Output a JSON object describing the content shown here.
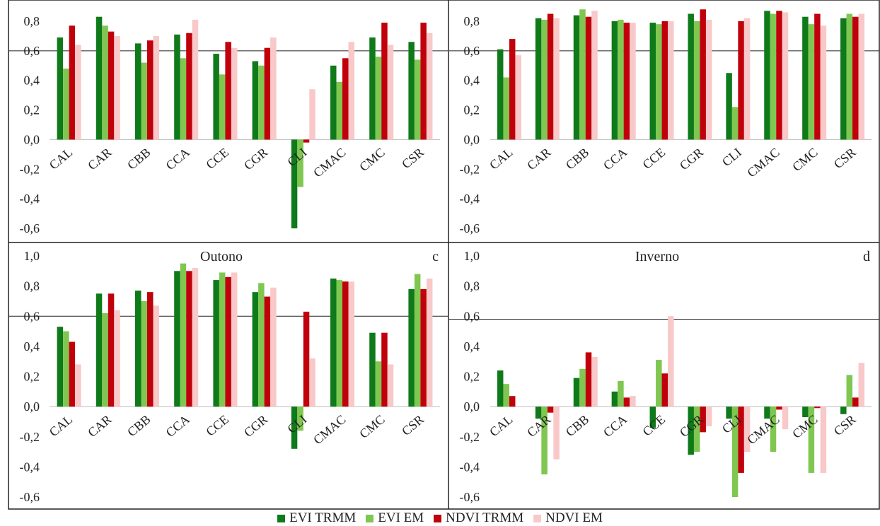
{
  "colors": {
    "evi_trmm": "#0f7a1a",
    "evi_em": "#7fc750",
    "ndvi_trmm": "#c0000b",
    "ndvi_em": "#f9c8c8"
  },
  "chart_data": [
    {
      "type": "bar",
      "title": "",
      "panel_letter": "",
      "categories": [
        "CAL",
        "CAR",
        "CBB",
        "CCA",
        "CCE",
        "CGR",
        "CLI",
        "CMAC",
        "CMC",
        "CSR"
      ],
      "series": [
        {
          "name": "EVI TRMM",
          "values": [
            0.69,
            0.83,
            0.65,
            0.71,
            0.58,
            0.53,
            -0.6,
            0.5,
            0.69,
            0.66
          ]
        },
        {
          "name": "EVI EM",
          "values": [
            0.48,
            0.77,
            0.52,
            0.55,
            0.44,
            0.5,
            -0.32,
            0.39,
            0.56,
            0.54
          ]
        },
        {
          "name": "NDVI TRMM",
          "values": [
            0.77,
            0.73,
            0.67,
            0.72,
            0.66,
            0.62,
            -0.02,
            0.55,
            0.79,
            0.79
          ]
        },
        {
          "name": "NDVI EM",
          "values": [
            0.64,
            0.7,
            0.7,
            0.81,
            0.62,
            0.69,
            0.34,
            0.66,
            0.64,
            0.72
          ]
        }
      ],
      "ylim": [
        -0.6,
        0.8
      ],
      "yticks": [
        "-0,6",
        "-0,4",
        "-0,2",
        "0,0",
        "0,2",
        "0,4",
        "0,6",
        "0,8"
      ],
      "threshold": 0.6
    },
    {
      "type": "bar",
      "title": "",
      "panel_letter": "",
      "categories": [
        "CAL",
        "CAR",
        "CBB",
        "CCA",
        "CCE",
        "CGR",
        "CLI",
        "CMAC",
        "CMC",
        "CSR"
      ],
      "series": [
        {
          "name": "EVI TRMM",
          "values": [
            0.61,
            0.82,
            0.84,
            0.8,
            0.79,
            0.85,
            0.45,
            0.87,
            0.83,
            0.82
          ]
        },
        {
          "name": "EVI EM",
          "values": [
            0.42,
            0.81,
            0.88,
            0.81,
            0.78,
            0.8,
            0.22,
            0.85,
            0.78,
            0.85
          ]
        },
        {
          "name": "NDVI TRMM",
          "values": [
            0.68,
            0.85,
            0.83,
            0.79,
            0.8,
            0.88,
            0.8,
            0.87,
            0.85,
            0.83
          ]
        },
        {
          "name": "NDVI EM",
          "values": [
            0.57,
            0.82,
            0.87,
            0.79,
            0.8,
            0.81,
            0.82,
            0.86,
            0.77,
            0.85
          ]
        }
      ],
      "ylim": [
        -0.6,
        0.8
      ],
      "yticks": [
        "-0,6",
        "-0,4",
        "-0,2",
        "0,0",
        "0,2",
        "0,4",
        "0,6",
        "0,8"
      ],
      "threshold": 0.6
    },
    {
      "type": "bar",
      "title": "Outono",
      "panel_letter": "c",
      "categories": [
        "CAL",
        "CAR",
        "CBB",
        "CCA",
        "CCE",
        "CGR",
        "CLI",
        "CMAC",
        "CMC",
        "CSR"
      ],
      "series": [
        {
          "name": "EVI TRMM",
          "values": [
            0.53,
            0.75,
            0.77,
            0.9,
            0.84,
            0.76,
            -0.28,
            0.85,
            0.49,
            0.78
          ]
        },
        {
          "name": "EVI EM",
          "values": [
            0.5,
            0.62,
            0.7,
            0.95,
            0.89,
            0.82,
            -0.16,
            0.84,
            0.3,
            0.88
          ]
        },
        {
          "name": "NDVI TRMM",
          "values": [
            0.43,
            0.75,
            0.76,
            0.9,
            0.86,
            0.73,
            0.63,
            0.83,
            0.49,
            0.78
          ]
        },
        {
          "name": "NDVI EM",
          "values": [
            0.28,
            0.64,
            0.67,
            0.92,
            0.89,
            0.79,
            0.32,
            0.83,
            0.28,
            0.85
          ]
        }
      ],
      "ylim": [
        -0.6,
        1.0
      ],
      "yticks": [
        "-0,6",
        "-0,4",
        "-0,2",
        "0,0",
        "0,2",
        "0,4",
        "0,6",
        "0,8",
        "1,0"
      ],
      "threshold": 0.6
    },
    {
      "type": "bar",
      "title": "Inverno",
      "panel_letter": "d",
      "categories": [
        "CAL",
        "CAR",
        "CBB",
        "CCA",
        "CCE",
        "CGR",
        "CLI",
        "CMAC",
        "CMC",
        "CSR"
      ],
      "series": [
        {
          "name": "EVI TRMM",
          "values": [
            0.24,
            -0.08,
            0.19,
            0.1,
            -0.14,
            -0.32,
            -0.08,
            -0.08,
            -0.07,
            -0.05
          ]
        },
        {
          "name": "EVI EM",
          "values": [
            0.15,
            -0.45,
            0.25,
            0.17,
            0.31,
            -0.3,
            -0.6,
            -0.3,
            -0.44,
            0.21
          ]
        },
        {
          "name": "NDVI TRMM",
          "values": [
            0.07,
            -0.04,
            0.36,
            0.06,
            0.22,
            -0.17,
            -0.44,
            -0.02,
            -0.01,
            0.06
          ]
        },
        {
          "name": "NDVI EM",
          "values": [
            0.0,
            -0.35,
            0.33,
            0.07,
            0.6,
            -0.13,
            -0.3,
            -0.15,
            -0.44,
            0.29
          ]
        }
      ],
      "ylim": [
        -0.6,
        1.0
      ],
      "yticks": [
        "-0,6",
        "-0,4",
        "-0,2",
        "0,0",
        "0,2",
        "0,4",
        "0,6",
        "0,8",
        "1,0"
      ],
      "threshold": 0.58
    }
  ],
  "legend": [
    "EVI TRMM",
    "EVI EM",
    "NDVI TRMM",
    "NDVI EM"
  ]
}
